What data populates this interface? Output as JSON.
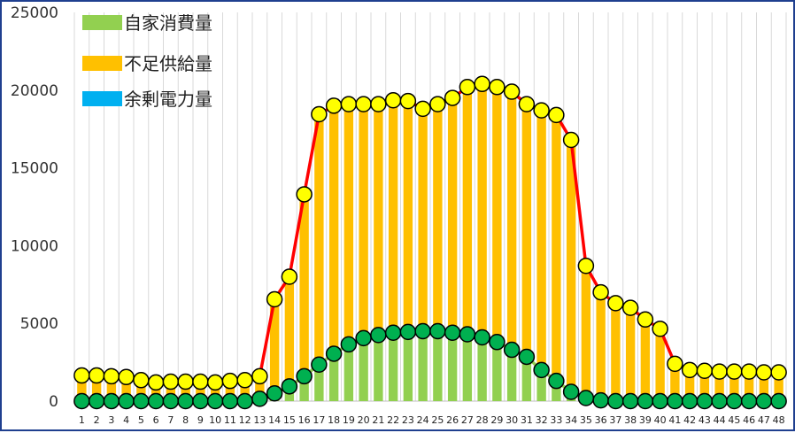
{
  "chart_data": {
    "type": "bar",
    "stacked": true,
    "title": "",
    "xlabel": "",
    "ylabel": "",
    "ylim": [
      0,
      25000
    ],
    "yticks": [
      0,
      5000,
      10000,
      15000,
      20000,
      25000
    ],
    "grid": "vertical",
    "legend_position": "top-left",
    "categories": [
      "1",
      "2",
      "3",
      "4",
      "5",
      "6",
      "7",
      "8",
      "9",
      "10",
      "11",
      "12",
      "13",
      "14",
      "15",
      "16",
      "17",
      "18",
      "19",
      "20",
      "21",
      "22",
      "23",
      "24",
      "25",
      "26",
      "27",
      "28",
      "29",
      "30",
      "31",
      "32",
      "33",
      "34",
      "35",
      "36",
      "37",
      "38",
      "39",
      "40",
      "41",
      "42",
      "43",
      "44",
      "45",
      "46",
      "47",
      "48"
    ],
    "series": [
      {
        "name": "自家消費量",
        "kind": "bar",
        "color": "#92d050",
        "values": [
          0,
          0,
          0,
          0,
          0,
          0,
          0,
          0,
          0,
          0,
          0,
          0,
          150,
          500,
          950,
          1600,
          2350,
          3050,
          3650,
          4050,
          4250,
          4400,
          4450,
          4500,
          4500,
          4400,
          4300,
          4100,
          3800,
          3300,
          2850,
          2000,
          1300,
          600,
          200,
          50,
          0,
          0,
          0,
          0,
          0,
          0,
          0,
          0,
          0,
          0,
          0,
          0
        ]
      },
      {
        "name": "不足供給量",
        "kind": "bar",
        "color": "#ffc000",
        "values": [
          1650,
          1650,
          1600,
          1550,
          1350,
          1200,
          1250,
          1250,
          1250,
          1200,
          1300,
          1350,
          1450,
          6050,
          7050,
          11700,
          16100,
          15950,
          15450,
          15050,
          14850,
          14950,
          14850,
          14300,
          14600,
          15100,
          15900,
          16300,
          16400,
          16600,
          16250,
          16700,
          17100,
          16200,
          8500,
          6950,
          6300,
          6000,
          5250,
          4650,
          2400,
          2000,
          1950,
          1900,
          1900,
          1900,
          1850,
          1850
        ]
      },
      {
        "name": "余剰電力量",
        "kind": "bar",
        "color": "#00b0f0",
        "values": [
          0,
          0,
          0,
          0,
          0,
          0,
          0,
          0,
          0,
          0,
          0,
          0,
          0,
          0,
          0,
          0,
          0,
          0,
          0,
          0,
          0,
          0,
          0,
          0,
          0,
          0,
          0,
          0,
          0,
          0,
          0,
          0,
          0,
          0,
          0,
          0,
          0,
          0,
          0,
          0,
          0,
          0,
          0,
          0,
          0,
          0,
          0,
          0
        ]
      }
    ],
    "overlay_lines": [
      {
        "kind": "total_demand",
        "line_color": "#ff0000",
        "marker_color": "#ffff00",
        "values": [
          1650,
          1650,
          1600,
          1550,
          1350,
          1200,
          1250,
          1250,
          1250,
          1200,
          1300,
          1350,
          1600,
          6550,
          8000,
          13300,
          18450,
          19000,
          19100,
          19100,
          19100,
          19350,
          19300,
          18800,
          19100,
          19500,
          20200,
          20400,
          20200,
          19900,
          19100,
          18700,
          18400,
          16800,
          8700,
          7000,
          6300,
          6000,
          5250,
          4650,
          2400,
          2000,
          1950,
          1900,
          1900,
          1900,
          1850,
          1850
        ]
      },
      {
        "kind": "self_consumption",
        "line_color": "#92d050",
        "marker_color": "#00b050",
        "values": [
          0,
          0,
          0,
          0,
          0,
          0,
          0,
          0,
          0,
          0,
          0,
          0,
          150,
          500,
          950,
          1600,
          2350,
          3050,
          3650,
          4050,
          4250,
          4400,
          4450,
          4500,
          4500,
          4400,
          4300,
          4100,
          3800,
          3300,
          2850,
          2000,
          1300,
          600,
          200,
          50,
          0,
          0,
          0,
          0,
          0,
          0,
          0,
          0,
          0,
          0,
          0,
          0
        ]
      }
    ]
  }
}
